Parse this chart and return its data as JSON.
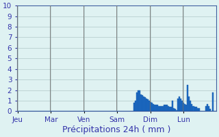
{
  "title": "Précipitations 24h ( mm )",
  "ylabel_ticks": [
    0,
    1,
    2,
    3,
    4,
    5,
    6,
    7,
    8,
    9,
    10
  ],
  "ylim": [
    0,
    10
  ],
  "background_color": "#dff2f2",
  "grid_color": "#b0c8c8",
  "bar_color": "#1e6ec8",
  "bar_edge_color": "#1050a0",
  "day_labels": [
    "Jeu",
    "Mar",
    "Ven",
    "Sam",
    "Dim",
    "Lun"
  ],
  "n_bars": 144,
  "day_positions": [
    0,
    24,
    48,
    72,
    96,
    120
  ],
  "bar_values": [
    0,
    0,
    0,
    0,
    0,
    0,
    0,
    0,
    0,
    0,
    0,
    0,
    0,
    0,
    0,
    0,
    0,
    0,
    0,
    0,
    0,
    0,
    0,
    0,
    0,
    0,
    0,
    0,
    0,
    0,
    0,
    0,
    0,
    0,
    0,
    0,
    0,
    0,
    0,
    0,
    0,
    0,
    0,
    0,
    0,
    0,
    0,
    0,
    0,
    0,
    0,
    0,
    0,
    0,
    0,
    0,
    0,
    0,
    0,
    0,
    0,
    0,
    0,
    0,
    0,
    0,
    0,
    0,
    0,
    0,
    0,
    0,
    0,
    0,
    0,
    0,
    0,
    0,
    0,
    0,
    0,
    0,
    0,
    0,
    0.8,
    1.0,
    1.8,
    2.0,
    2.0,
    1.6,
    1.5,
    1.4,
    1.3,
    1.2,
    1.1,
    1.0,
    0.9,
    0.8,
    0.7,
    0.6,
    0.6,
    0.6,
    0.5,
    0.5,
    0.5,
    0.5,
    0.6,
    0.6,
    0.6,
    0.5,
    0.4,
    0.4,
    1.0,
    0.3,
    0.2,
    0.1,
    1.2,
    1.4,
    1.2,
    1.0,
    0.8,
    0.7,
    0.6,
    2.5,
    1.4,
    1.0,
    0.7,
    0.5,
    0.4,
    0.4,
    0.3,
    0.3,
    0,
    0,
    0,
    0,
    0.5,
    0.7,
    0.5,
    0.2,
    0,
    1.8,
    0,
    0,
    0,
    0,
    0,
    0
  ],
  "axis_line_color": "#4060a0",
  "tick_label_color": "#3333aa",
  "title_color": "#3333aa",
  "title_fontsize": 9,
  "tick_fontsize": 7.5
}
